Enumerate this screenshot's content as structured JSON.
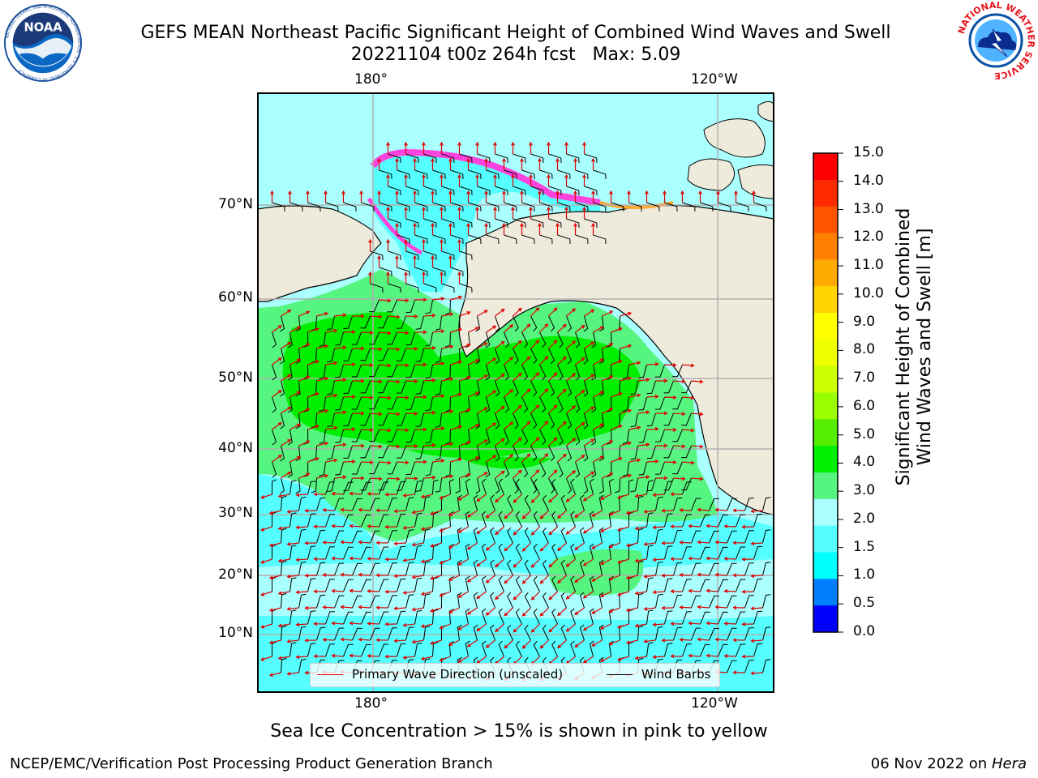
{
  "header": {
    "title_line1": "GEFS MEAN Northeast Pacific Significant Height of Combined Wind Waves and Swell",
    "title_line2": "20221104 t00z 264h fcst   Max: 5.09",
    "left_logo": "noaa-logo",
    "right_logo": "nws-logo",
    "noaa_logo_text": "NOAA",
    "noaa_ring_text": "NATIONAL OCEANIC AND ATMOSPHERIC ADMINISTRATION · U.S. DEPARTMENT OF COMMERCE",
    "nws_ring_text": "NATIONAL WEATHER SERVICE"
  },
  "map": {
    "lon_labels": [
      "180°",
      "120°W"
    ],
    "lat_labels": [
      "70°N",
      "60°N",
      "50°N",
      "40°N",
      "30°N",
      "20°N",
      "10°N"
    ],
    "land_color": "#efebdc",
    "legend": {
      "wave_direction_label": "Primary Wave Direction (unscaled)",
      "wind_barbs_label": "Wind Barbs",
      "wave_direction_color": "#ff0000",
      "wind_barbs_color": "#000000"
    }
  },
  "colorbar": {
    "label_line1": "Significant Height of Combined",
    "label_line2": "Wind Waves and Swell [m]",
    "ticks": [
      "15.0",
      "14.0",
      "13.0",
      "12.0",
      "11.0",
      "10.0",
      "9.0",
      "8.0",
      "7.0",
      "6.0",
      "5.0",
      "4.0",
      "3.0",
      "2.0",
      "1.5",
      "1.0",
      "0.5",
      "0.0"
    ],
    "colors_top_to_bottom": [
      "#ff0000",
      "#ff2a00",
      "#ff5500",
      "#ff7f00",
      "#ffaa00",
      "#ffd400",
      "#ffff00",
      "#eeff00",
      "#ccff00",
      "#99ff00",
      "#55ee00",
      "#00ee00",
      "#55f580",
      "#aaffff",
      "#55ffff",
      "#00ffff",
      "#0080ff",
      "#0000ff"
    ]
  },
  "footnote": "Sea Ice Concentration > 15% is shown in pink to yellow",
  "footer": {
    "left": "NCEP/EMC/Verification Post Processing Product Generation Branch",
    "right_date": "06 Nov 2022 on",
    "right_host": "Hera"
  }
}
